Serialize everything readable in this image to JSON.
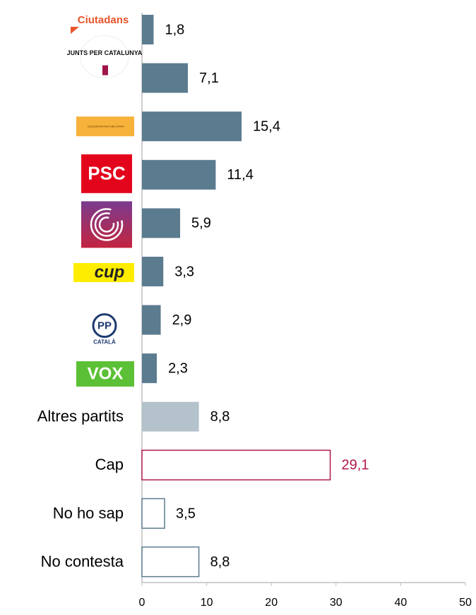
{
  "chart_data": {
    "type": "barh",
    "categories": [
      "Ciutadans",
      "JUNTS PER CATALUNYA",
      "ESQUERRA REPUBLICANA",
      "PSC",
      null,
      "cup",
      "CATALÀ",
      "VOX",
      "Altres partits",
      "Cap",
      "No ho sap",
      "No contesta"
    ],
    "pp_logo_text": "PP",
    "values": [
      1.8,
      7.1,
      15.4,
      11.4,
      5.9,
      3.3,
      2.9,
      2.3,
      8.8,
      29.1,
      3.5,
      8.8
    ],
    "value_labels": [
      "1,8",
      "7,1",
      "15,4",
      "11,4",
      "5,9",
      "3,3",
      "2,9",
      "2,3",
      "8,8",
      "29,1",
      "3,5",
      "8,8"
    ],
    "bar_colors": [
      "#5b7b8f",
      "#5b7b8f",
      "#5b7b8f",
      "#5b7b8f",
      "#5b7b8f",
      "#5b7b8f",
      "#5b7b8f",
      "#5b7b8f",
      "#b3c2cb",
      "#b0174f",
      "#5b7b8f",
      "#5b7b8f"
    ],
    "bar_fill": [
      "solid",
      "solid",
      "solid",
      "solid",
      "solid",
      "solid",
      "solid",
      "solid",
      "solid",
      "outline",
      "outline",
      "outline"
    ],
    "label_colors": [
      "#000000",
      "#000000",
      "#000000",
      "#000000",
      "#000000",
      "#000000",
      "#000000",
      "#000000",
      "#000000",
      "#b0174f",
      "#000000",
      "#000000"
    ],
    "xlim": [
      0,
      50
    ],
    "xticks": [
      0,
      10,
      20,
      30,
      40,
      50
    ]
  }
}
